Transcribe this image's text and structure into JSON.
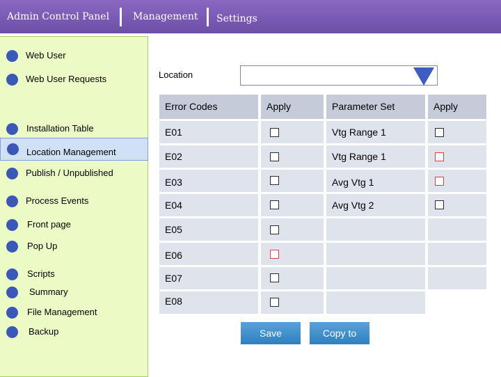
{
  "header": {
    "tabs": [
      "Admin Control Panel",
      "Management",
      "Settings"
    ]
  },
  "sidebar": {
    "items": [
      {
        "label": "Web User"
      },
      {
        "label": "Web User Requests"
      },
      {
        "label": "Installation Table"
      },
      {
        "label": "Location Management",
        "active": true
      },
      {
        "label": "Publish / Unpublished"
      },
      {
        "label": "Process Events"
      },
      {
        "label": "Front page"
      },
      {
        "label": "Pop Up"
      },
      {
        "label": "Scripts"
      },
      {
        "label": "Summary"
      },
      {
        "label": "File Management"
      },
      {
        "label": "Backup"
      }
    ]
  },
  "location": {
    "label": "Location",
    "value": ""
  },
  "table": {
    "headers": [
      "Error Codes",
      "Apply",
      "Parameter Set",
      "Apply"
    ],
    "rows": [
      {
        "code": "E01",
        "param": "Vtg Range 1"
      },
      {
        "code": "E02",
        "param": "Vtg Range 1"
      },
      {
        "code": "E03",
        "param": "Avg Vtg 1"
      },
      {
        "code": "E04",
        "param": "Avg Vtg 2"
      },
      {
        "code": "E05",
        "param": ""
      },
      {
        "code": "E06",
        "param": ""
      },
      {
        "code": "E07",
        "param": ""
      },
      {
        "code": "E08",
        "param": ""
      }
    ]
  },
  "buttons": {
    "save": "Save",
    "copy_to": "Copy to"
  },
  "colors": {
    "header_bar": "#7b5cb8",
    "sidebar_bg": "#ecfbc6",
    "nav_dot": "#3b57b8",
    "active_item": "#cfe0f7",
    "table_cell": "#dfe3ec",
    "table_header": "#c5cbd9",
    "button": "#3a8ccb",
    "checkbox_red": "#d94040"
  }
}
